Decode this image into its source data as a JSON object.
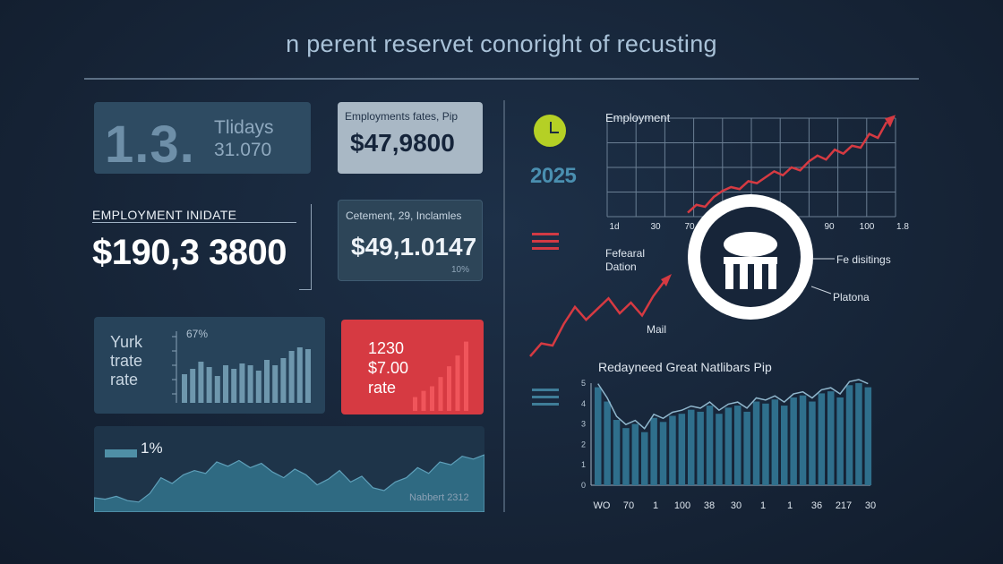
{
  "header": {
    "title": "n perent reservet conoright of recusting"
  },
  "cards": {
    "top_left": {
      "big": "1.3.",
      "line1": "Tlidays",
      "line2": "31.070"
    },
    "top_mid": {
      "label": "Employments fates, Pip",
      "value": "$47,9800"
    },
    "employment": {
      "label": "EMPLOYMENT INIDATE",
      "value": "$190,3 3800"
    },
    "mid_mid": {
      "label": "Cetement, 29, Inclamles",
      "value": "$49,1.0147",
      "pct": "10%"
    },
    "yurk": {
      "line1": "Yurk",
      "line2": "trate",
      "line3": "rate",
      "pct": "67%"
    },
    "red": {
      "line1": "1230",
      "line2": "$7.00",
      "line3": "rate"
    },
    "area": {
      "pct": "1%",
      "note": "Nabbert 2312"
    }
  },
  "right": {
    "year": "2025",
    "employment_title": "Employment",
    "federal_line1": "Fefearal",
    "federal_line2": "Dation",
    "mail": "Mail",
    "fe_distings": "Fe disitings",
    "platona": "Platona",
    "bars_title": "Redayneed Great Natlibars Pip"
  },
  "colors": {
    "background": "#172539",
    "accent_red": "#d63a42",
    "accent_teal": "#3f7d98",
    "clock_green": "#b5d025",
    "text": "#e8eef5"
  },
  "icons": {
    "clock": "clock-icon",
    "red_menu": "menu-icon",
    "teal_menu": "menu-icon",
    "emblem": "government-building-icon"
  },
  "chart_data": [
    {
      "id": "yurk-bars",
      "type": "bar",
      "values": [
        32,
        38,
        46,
        40,
        30,
        42,
        38,
        44,
        42,
        36,
        48,
        42,
        50,
        58,
        62,
        60
      ]
    },
    {
      "id": "red-bars",
      "type": "bar",
      "values": [
        18,
        26,
        32,
        44,
        58,
        72,
        90
      ]
    },
    {
      "id": "area-trend",
      "type": "area",
      "values": [
        20,
        18,
        22,
        16,
        14,
        26,
        48,
        40,
        52,
        58,
        54,
        70,
        64,
        72,
        62,
        68,
        56,
        48,
        60,
        52,
        38,
        46,
        58,
        42,
        50,
        34,
        30,
        42,
        48,
        62,
        54,
        70,
        66,
        78,
        74,
        80
      ]
    },
    {
      "id": "employment-line",
      "type": "line",
      "title": "Employment",
      "x_ticks": [
        "1d",
        "30",
        "70",
        "",
        "",
        "",
        "90",
        "100",
        "1.8"
      ],
      "values": [
        4,
        12,
        10,
        20,
        26,
        30,
        28,
        36,
        34,
        40,
        46,
        42,
        50,
        47,
        56,
        62,
        58,
        68,
        64,
        72,
        70,
        84,
        80,
        96
      ]
    },
    {
      "id": "federal-line",
      "type": "line",
      "values": [
        10,
        22,
        20,
        40,
        56,
        44,
        54,
        64,
        50,
        60,
        48,
        66,
        80
      ]
    },
    {
      "id": "natlibars",
      "type": "bar",
      "title": "Redayneed Great Natlibars Pip",
      "y_ticks": [
        "0",
        "1",
        "2",
        "3",
        "4",
        "5"
      ],
      "x_ticks": [
        "WO",
        "70",
        "1",
        "100",
        "38",
        "30",
        "1",
        "1",
        "36",
        "217",
        "30"
      ],
      "values": [
        4.8,
        4.1,
        3.2,
        2.8,
        3.0,
        2.6,
        3.3,
        3.1,
        3.4,
        3.5,
        3.7,
        3.6,
        3.9,
        3.5,
        3.8,
        3.9,
        3.6,
        4.1,
        4.0,
        4.2,
        3.9,
        4.3,
        4.4,
        4.1,
        4.5,
        4.6,
        4.3,
        4.9,
        5.0,
        4.8
      ]
    }
  ]
}
